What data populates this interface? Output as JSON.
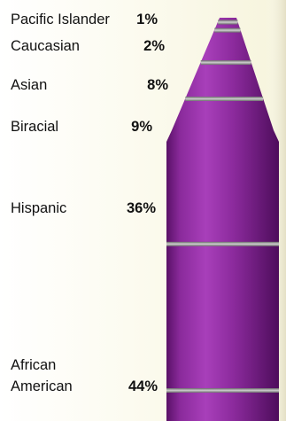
{
  "colors": {
    "crayon_body": "#7e1f8e",
    "crayon_highlight": "#b24ac2",
    "crayon_shadow": "#4e0d5c",
    "band_color": "#9a9a9a",
    "text": "#111111"
  },
  "chart_data": {
    "type": "bar",
    "title": "",
    "xlabel": "",
    "ylabel": "",
    "unit": "%",
    "categories": [
      "Pacific Islander",
      "Caucasian",
      "Asian",
      "Biracial",
      "Hispanic",
      "African American"
    ],
    "values": [
      1,
      2,
      8,
      9,
      36,
      44
    ],
    "label_lines": [
      [
        "Pacific Islander"
      ],
      [
        "Caucasian"
      ],
      [
        "Asian"
      ],
      [
        "Biracial"
      ],
      [
        "Hispanic"
      ],
      [
        "African",
        "American"
      ]
    ],
    "value_labels": [
      "1%",
      "2%",
      "8%",
      "9%",
      "36%",
      "44%"
    ]
  }
}
